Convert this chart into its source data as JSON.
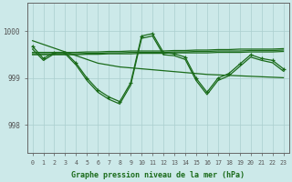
{
  "background_color": "#cce9e9",
  "grid_color": "#aacece",
  "line_color": "#1a6b1a",
  "title": "Graphe pression niveau de la mer (hPa)",
  "yticks": [
    998,
    999,
    1000
  ],
  "ylim": [
    997.4,
    1000.6
  ],
  "xlim": [
    -0.5,
    23.5
  ],
  "line_descending": [
    999.8,
    999.72,
    999.64,
    999.56,
    999.48,
    999.4,
    999.32,
    999.28,
    999.24,
    999.22,
    999.2,
    999.18,
    999.16,
    999.14,
    999.12,
    999.1,
    999.08,
    999.07,
    999.06,
    999.05,
    999.04,
    999.03,
    999.02,
    999.01
  ],
  "line_flat_high": [
    999.55,
    999.55,
    999.55,
    999.55,
    999.55,
    999.56,
    999.56,
    999.57,
    999.57,
    999.58,
    999.58,
    999.58,
    999.58,
    999.59,
    999.59,
    999.6,
    999.6,
    999.61,
    999.61,
    999.62,
    999.62,
    999.62,
    999.62,
    999.63
  ],
  "line_flat_low": [
    999.5,
    999.5,
    999.5,
    999.5,
    999.5,
    999.51,
    999.51,
    999.52,
    999.52,
    999.52,
    999.53,
    999.53,
    999.53,
    999.54,
    999.54,
    999.54,
    999.54,
    999.55,
    999.55,
    999.55,
    999.56,
    999.56,
    999.56,
    999.57
  ],
  "line_flat_mid": [
    999.52,
    999.52,
    999.52,
    999.52,
    999.52,
    999.53,
    999.53,
    999.54,
    999.54,
    999.55,
    999.55,
    999.55,
    999.55,
    999.56,
    999.56,
    999.57,
    999.57,
    999.58,
    999.58,
    999.58,
    999.59,
    999.59,
    999.59,
    999.6
  ],
  "main_jagged": [
    999.68,
    999.42,
    999.55,
    999.55,
    999.32,
    999.0,
    998.75,
    998.6,
    998.5,
    998.9,
    999.9,
    999.95,
    999.55,
    999.52,
    999.45,
    999.0,
    998.7,
    999.0,
    999.1,
    999.3,
    999.5,
    999.42,
    999.38,
    999.2
  ],
  "line_track": [
    999.62,
    999.38,
    999.52,
    999.52,
    999.28,
    998.95,
    998.7,
    998.55,
    998.45,
    998.85,
    999.85,
    999.9,
    999.5,
    999.48,
    999.4,
    998.95,
    998.65,
    998.95,
    999.05,
    999.25,
    999.45,
    999.38,
    999.33,
    999.15
  ]
}
